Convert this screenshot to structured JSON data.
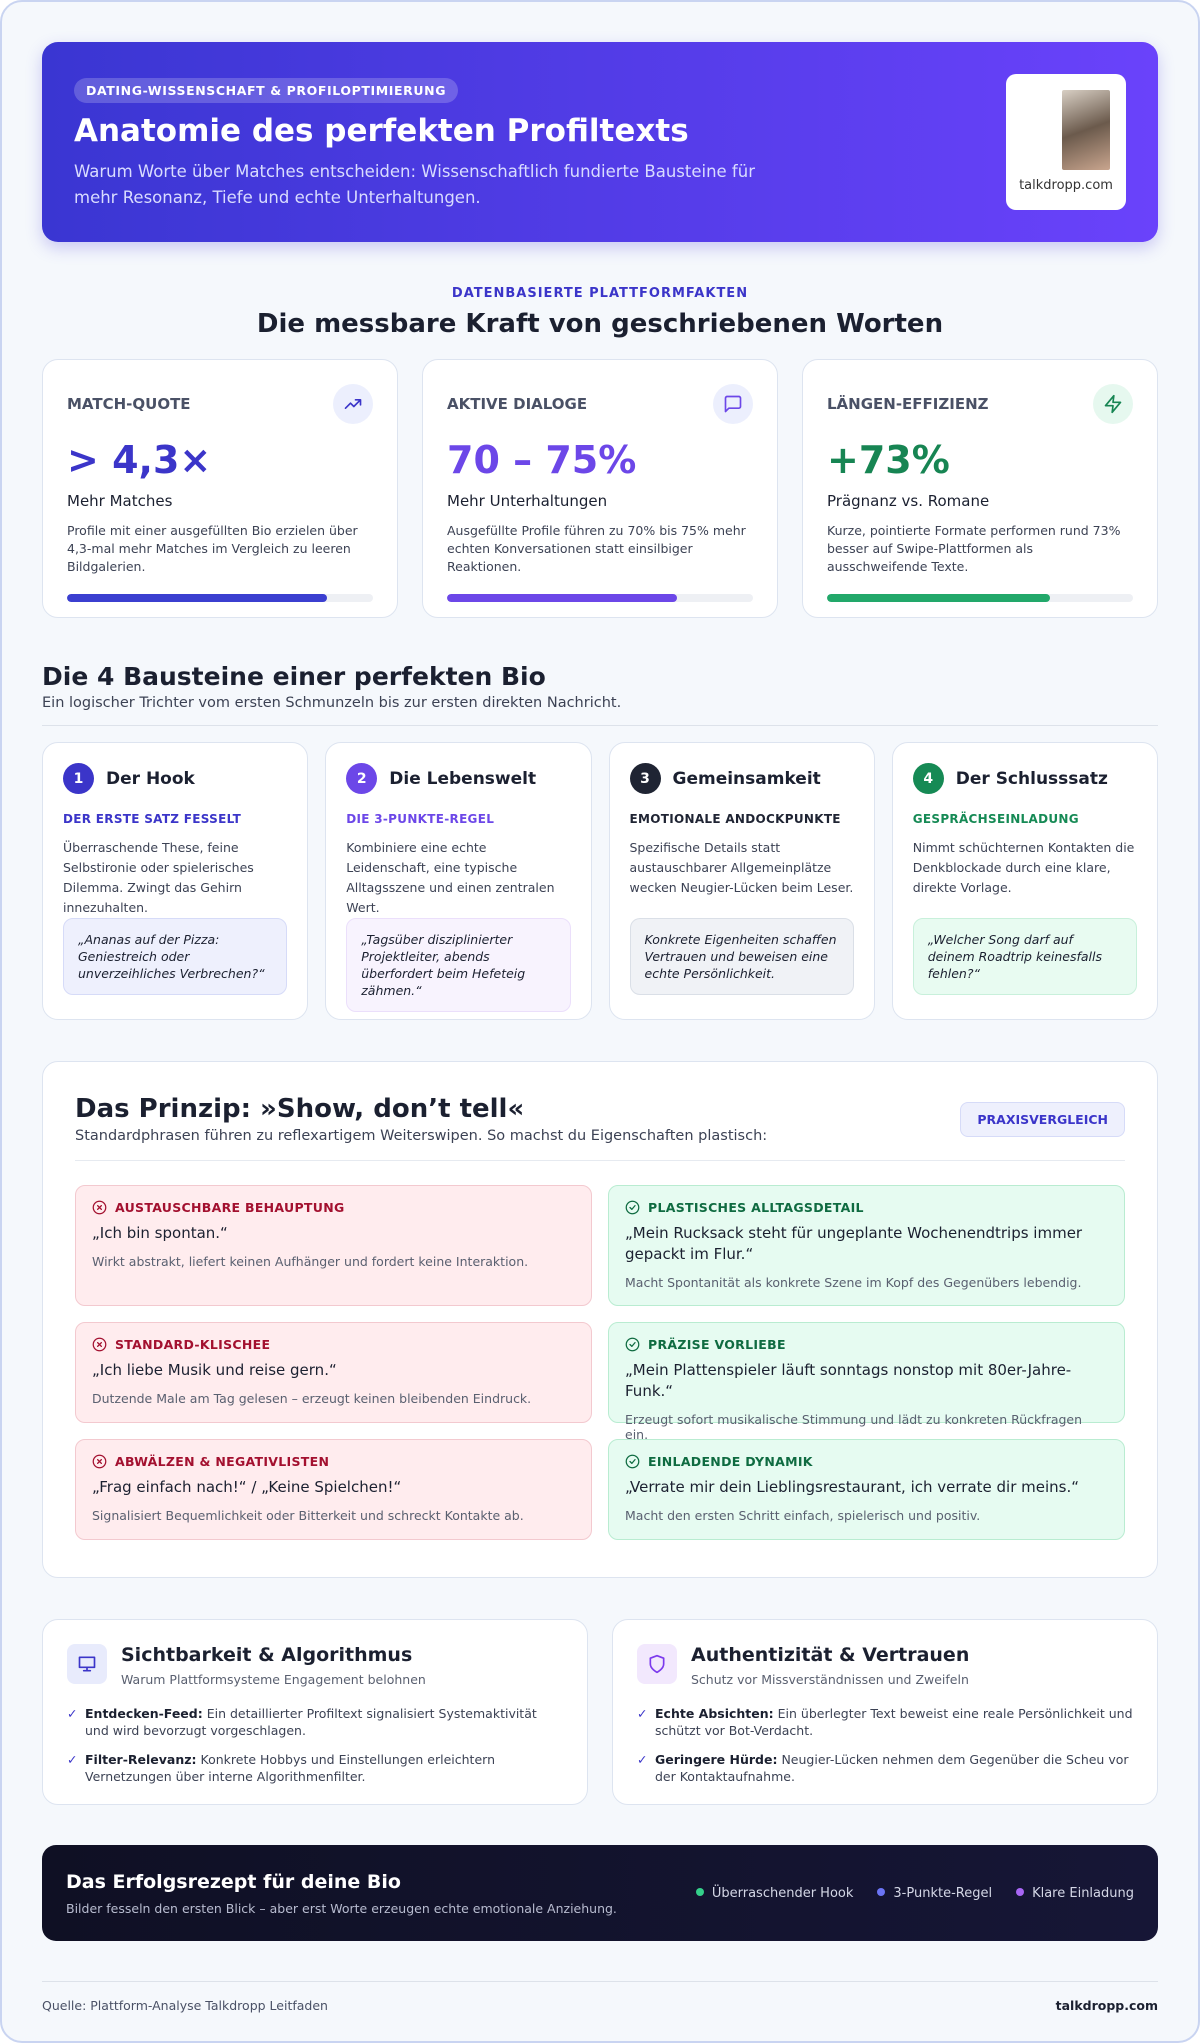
{
  "header": {
    "badge": "DATING-WISSENSCHAFT & PROFILOPTIMIERUNG",
    "title": "Anatomie des perfekten Profiltexts",
    "subtitle": "Warum Worte über Matches entscheiden: Wissenschaftlich fundierte Bausteine für mehr Resonanz, Tiefe und echte Unterhaltungen.",
    "logo_caption": "talkdropp.com"
  },
  "facts": {
    "eyebrow": "DATENBASIERTE PLATTFORMFAKTEN",
    "title": "Die messbare Kraft von geschriebenen Worten",
    "cards": [
      {
        "label": "MATCH-QUOTE",
        "value": "> 4,3×",
        "subtitle": "Mehr Matches",
        "text": "Profile mit einer ausgefüllten Bio erzielen über 4,3-mal mehr Matches im Vergleich zu leeren Bildgalerien.",
        "progress": 85
      },
      {
        "label": "AKTIVE DIALOGE",
        "value": "70 – 75%",
        "subtitle": "Mehr Unterhaltungen",
        "text": "Ausgefüllte Profile führen zu 70% bis 75% mehr echten Konversationen statt einsilbiger Reaktionen.",
        "progress": 75
      },
      {
        "label": "LÄNGEN-EFFIZIENZ",
        "value": "+73%",
        "subtitle": "Prägnanz vs. Romane",
        "text": "Kurze, pointierte Formate performen rund 73% besser auf Swipe-Plattformen als ausschweifende Texte.",
        "progress": 73
      }
    ]
  },
  "blocks": {
    "title": "Die 4 Bausteine einer perfekten Bio",
    "subtitle": "Ein logischer Trichter vom ersten Schmunzeln bis zur ersten direkten Nachricht.",
    "cards": [
      {
        "number": 1,
        "title": "Der Hook",
        "tag": "DER ERSTE SATZ FESSELT",
        "text": "Überraschende These, feine Selbstironie oder spielerisches Dilemma. Zwingt das Gehirn innezuhalten.",
        "example": "„Ananas auf der Pizza: Geniestreich oder unverzeihliches Verbrechen?“"
      },
      {
        "number": 2,
        "title": "Die Lebenswelt",
        "tag": "DIE 3-PUNKTE-REGEL",
        "text": "Kombiniere eine echte Leidenschaft, eine typische Alltagsszene und einen zentralen Wert.",
        "example": "„Tagsüber disziplinierter Projektleiter, abends überfordert beim Hefeteig zähmen.“"
      },
      {
        "number": 3,
        "title": "Gemeinsamkeit",
        "tag": "EMOTIONALE ANDOCKPUNKTE",
        "text": "Spezifische Details statt austauschbarer Allgemeinplätze wecken Neugier-Lücken beim Leser.",
        "example": "Konkrete Eigenheiten schaffen Vertrauen und beweisen eine echte Persönlichkeit."
      },
      {
        "number": 4,
        "title": "Der Schlusssatz",
        "tag": "GESPRÄCHSEINLADUNG",
        "text": "Nimmt schüchternen Kontakten die Denkblockade durch eine klare, direkte Vorlage.",
        "example": "„Welcher Song darf auf deinem Roadtrip keinesfalls fehlen?“"
      }
    ]
  },
  "principle": {
    "title": "Das Prinzip: »Show, don’t tell«",
    "subtitle": "Standardphrasen führen zu reflexartigem Weiterswipen. So machst du Eigenschaften plastisch:",
    "badge": "PRAXISVERGLEICH",
    "rows": [
      {
        "bad": {
          "label": "AUSTAUSCHBARE BEHAUPTUNG",
          "quote": "„Ich bin spontan.“",
          "note": "Wirkt abstrakt, liefert keinen Aufhänger und fordert keine Interaktion."
        },
        "good": {
          "label": "PLASTISCHES ALLTAGSDETAIL",
          "quote": "„Mein Rucksack steht für ungeplante Wochenendtrips immer gepackt im Flur.“",
          "note": "Macht Spontanität als konkrete Szene im Kopf des Gegenübers lebendig."
        }
      },
      {
        "bad": {
          "label": "STANDARD-KLISCHEE",
          "quote": "„Ich liebe Musik und reise gern.“",
          "note": "Dutzende Male am Tag gelesen – erzeugt keinen bleibenden Eindruck."
        },
        "good": {
          "label": "PRÄZISE VORLIEBE",
          "quote": "„Mein Plattenspieler läuft sonntags nonstop mit 80er-Jahre-Funk.“",
          "note": "Erzeugt sofort musikalische Stimmung und lädt zu konkreten Rückfragen ein."
        }
      },
      {
        "bad": {
          "label": "ABWÄLZEN & NEGATIVLISTEN",
          "quote": "„Frag einfach nach!“ / „Keine Spielchen!“",
          "note": "Signalisiert Bequemlichkeit oder Bitterkeit und schreckt Kontakte ab."
        },
        "good": {
          "label": "EINLADENDE DYNAMIK",
          "quote": "„Verrate mir dein Lieblingsrestaurant, ich verrate dir meins.“",
          "note": "Macht den ersten Schritt einfach, spielerisch und positiv."
        }
      }
    ]
  },
  "info": [
    {
      "title": "Sichtbarkeit & Algorithmus",
      "subtitle": "Warum Plattformsysteme Engagement belohnen",
      "items": [
        {
          "term": "Entdecken-Feed:",
          "text": "Ein detaillierter Profiltext signalisiert Systemaktivität und wird bevorzugt vorgeschlagen."
        },
        {
          "term": "Filter-Relevanz:",
          "text": "Konkrete Hobbys und Einstellungen erleichtern Vernetzungen über interne Algorithmenfilter."
        }
      ]
    },
    {
      "title": "Authentizität & Vertrauen",
      "subtitle": "Schutz vor Missverständnissen und Zweifeln",
      "items": [
        {
          "term": "Echte Absichten:",
          "text": "Ein überlegter Text beweist eine reale Persönlichkeit und schützt vor Bot-Verdacht."
        },
        {
          "term": "Geringere Hürde:",
          "text": "Neugier-Lücken nehmen dem Gegenüber die Scheu vor der Kontaktaufnahme."
        }
      ]
    }
  ],
  "banner": {
    "title": "Das Erfolgsrezept für deine Bio",
    "text": "Bilder fesseln den ersten Blick – aber erst Worte erzeugen echte emotionale Anziehung.",
    "chips": [
      "Überraschender Hook",
      "3-Punkte-Regel",
      "Klare Einladung"
    ]
  },
  "footer": {
    "source": "Quelle: Plattform-Analyse Talkdropp Leitfaden",
    "brand": "talkdropp.com"
  }
}
